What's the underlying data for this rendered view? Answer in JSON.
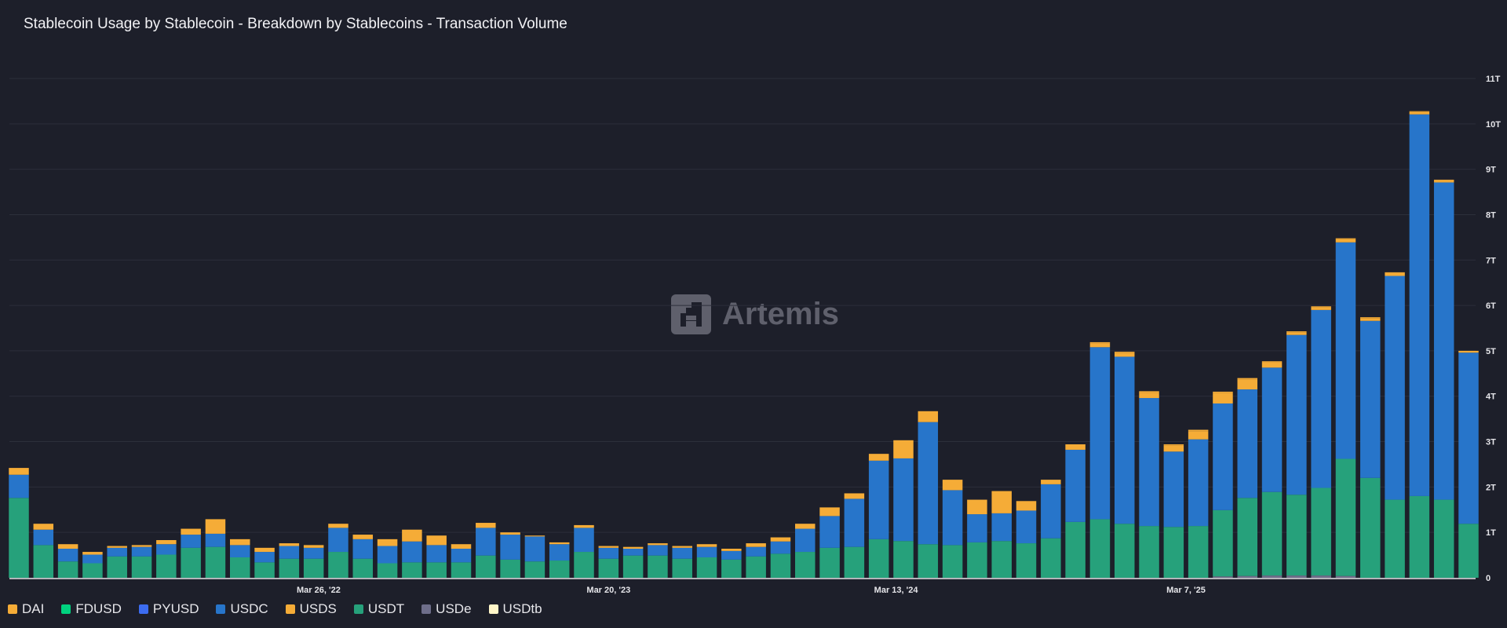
{
  "title": "Stablecoin Usage by Stablecoin - Breakdown by Stablecoins - Transaction Volume",
  "watermark": "Artemis",
  "legend": [
    {
      "name": "DAI",
      "color": "#f5ac37"
    },
    {
      "name": "FDUSD",
      "color": "#00d27f"
    },
    {
      "name": "PYUSD",
      "color": "#3c6cf0"
    },
    {
      "name": "USDC",
      "color": "#2775ca"
    },
    {
      "name": "USDS",
      "color": "#f5ac37"
    },
    {
      "name": "USDT",
      "color": "#26a17b"
    },
    {
      "name": "USDe",
      "color": "#6e6e8a"
    },
    {
      "name": "USDtb",
      "color": "#fff6c8"
    }
  ],
  "chart_data": {
    "type": "bar",
    "stacked": true,
    "title": "Stablecoin Usage by Stablecoin - Breakdown by Stablecoins - Transaction Volume",
    "y_unit": "T",
    "ylim": [
      0,
      11
    ],
    "y_ticks": [
      "0",
      "1T",
      "2T",
      "3T",
      "4T",
      "5T",
      "6T",
      "7T",
      "8T",
      "9T",
      "10T",
      "11T"
    ],
    "x_ticks": [
      "Mar 26, '22",
      "Mar 20, '23",
      "Mar 13, '24",
      "Mar 7, '25"
    ],
    "grid": true,
    "legend_position": "bottom-left",
    "series": [
      {
        "name": "USDT",
        "color": "#26a17b",
        "values": [
          1.76,
          0.72,
          0.36,
          0.32,
          0.47,
          0.47,
          0.51,
          0.66,
          0.68,
          0.45,
          0.34,
          0.42,
          0.42,
          0.57,
          0.42,
          0.32,
          0.34,
          0.34,
          0.34,
          0.49,
          0.4,
          0.36,
          0.38,
          0.57,
          0.42,
          0.49,
          0.49,
          0.42,
          0.45,
          0.4,
          0.47,
          0.53,
          0.57,
          0.66,
          0.68,
          0.85,
          0.81,
          0.74,
          0.72,
          0.78,
          0.81,
          0.76,
          0.87,
          1.23,
          1.29,
          1.19,
          1.14,
          1.12,
          1.14,
          1.46,
          1.72,
          1.84,
          1.78,
          1.93,
          2.58,
          2.2,
          1.72,
          1.8,
          1.72,
          1.19
        ]
      },
      {
        "name": "USDC",
        "color": "#2775ca",
        "values": [
          0.51,
          0.34,
          0.28,
          0.19,
          0.19,
          0.21,
          0.23,
          0.29,
          0.29,
          0.27,
          0.23,
          0.28,
          0.24,
          0.53,
          0.43,
          0.38,
          0.46,
          0.38,
          0.3,
          0.61,
          0.55,
          0.55,
          0.36,
          0.53,
          0.24,
          0.15,
          0.23,
          0.24,
          0.23,
          0.19,
          0.21,
          0.27,
          0.51,
          0.7,
          1.06,
          1.73,
          1.82,
          2.69,
          1.21,
          0.62,
          0.61,
          0.72,
          1.19,
          1.59,
          3.79,
          3.68,
          2.82,
          1.66,
          1.91,
          2.35,
          2.39,
          2.74,
          3.52,
          3.92,
          4.77,
          3.46,
          4.93,
          8.41,
          6.99,
          3.77
        ]
      },
      {
        "name": "DAI",
        "color": "#f5ac37",
        "values": [
          0.15,
          0.13,
          0.1,
          0.06,
          0.04,
          0.04,
          0.09,
          0.13,
          0.32,
          0.13,
          0.09,
          0.06,
          0.06,
          0.09,
          0.1,
          0.15,
          0.26,
          0.21,
          0.1,
          0.11,
          0.05,
          0.02,
          0.04,
          0.06,
          0.04,
          0.04,
          0.04,
          0.04,
          0.06,
          0.05,
          0.08,
          0.09,
          0.11,
          0.19,
          0.12,
          0.15,
          0.4,
          0.24,
          0.23,
          0.32,
          0.49,
          0.21,
          0.1,
          0.12,
          0.03,
          0.03,
          0.03,
          0.03,
          0.03,
          0.03,
          0.03,
          0.03,
          0.02,
          0.02,
          0.02,
          0.02,
          0.02,
          0.02,
          0.02,
          0.01
        ]
      },
      {
        "name": "USDS",
        "color": "#f5ac37",
        "values": [
          0,
          0,
          0,
          0,
          0,
          0,
          0,
          0,
          0,
          0,
          0,
          0,
          0,
          0,
          0,
          0,
          0,
          0,
          0,
          0,
          0,
          0,
          0,
          0,
          0,
          0,
          0,
          0,
          0,
          0,
          0,
          0,
          0,
          0,
          0,
          0,
          0,
          0,
          0,
          0,
          0,
          0,
          0,
          0,
          0.08,
          0.08,
          0.12,
          0.13,
          0.18,
          0.23,
          0.22,
          0.11,
          0.06,
          0.06,
          0.07,
          0.06,
          0.06,
          0.05,
          0.04,
          0.03
        ]
      },
      {
        "name": "USDe",
        "color": "#6e6e8a",
        "values": [
          0,
          0,
          0,
          0,
          0,
          0,
          0,
          0,
          0,
          0,
          0,
          0,
          0,
          0,
          0,
          0,
          0,
          0,
          0,
          0,
          0,
          0,
          0,
          0,
          0,
          0,
          0,
          0,
          0,
          0,
          0,
          0,
          0,
          0,
          0,
          0,
          0,
          0,
          0,
          0,
          0,
          0,
          0,
          0,
          0,
          0,
          0,
          0,
          0,
          0.03,
          0.04,
          0.05,
          0.05,
          0.05,
          0.04,
          0,
          0,
          0,
          0,
          0
        ]
      }
    ]
  }
}
